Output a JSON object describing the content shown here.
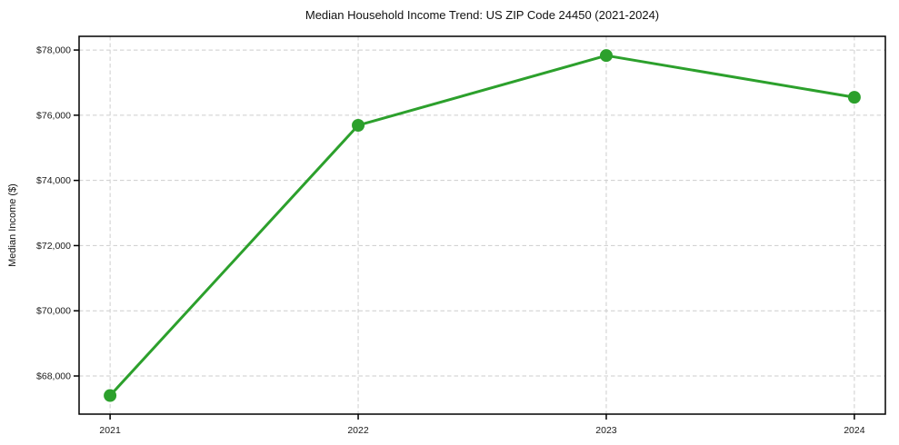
{
  "chart_data": {
    "type": "line",
    "title": "Median Household Income Trend: US ZIP Code 24450 (2021-2024)",
    "xlabel": "",
    "ylabel": "Median Income ($)",
    "x": [
      2021,
      2022,
      2023,
      2024
    ],
    "x_tick_labels": [
      "2021",
      "2022",
      "2023",
      "2024"
    ],
    "series": [
      {
        "name": "Median Household Income",
        "values": [
          67400,
          75690,
          77830,
          76550
        ]
      }
    ],
    "y_ticks": [
      68000,
      70000,
      72000,
      74000,
      76000,
      78000
    ],
    "y_tick_labels": [
      "$68,000",
      "$70,000",
      "$72,000",
      "$74,000",
      "$76,000",
      "$78,000"
    ],
    "ylim": [
      66830,
      78420
    ],
    "xlim": [
      2020.875,
      2024.125
    ],
    "grid": true,
    "grid_style": "dashed",
    "legend_position": "none",
    "line_color": "#2ca02c",
    "marker": "circle",
    "grid_color": "#cdcdcd",
    "spine_color": "#000000",
    "background_color": "#ffffff"
  }
}
